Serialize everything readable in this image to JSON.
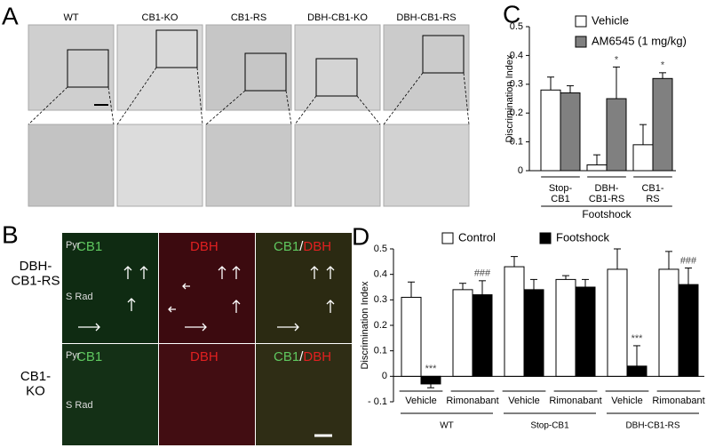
{
  "panel_a": {
    "label": "A",
    "columns": [
      "WT",
      "CB1-KO",
      "CB1-RS",
      "DBH-CB1-KO",
      "DBH-CB1-RS"
    ]
  },
  "panel_b": {
    "label": "B",
    "channels": [
      "CB1",
      "DBH"
    ],
    "separator": "/",
    "rows": [
      "DBH-\nCB1-RS",
      "CB1-\nKO"
    ],
    "regions": [
      "Pyr",
      "S Rad"
    ]
  },
  "chart_data": [
    {
      "type": "bar",
      "panel_label": "C",
      "y_label": "Discrimination Index",
      "categories": [
        "Stop-\nCB1",
        "DBH-\nCB1-RS",
        "CB1-\nRS"
      ],
      "group_label": "Footshock",
      "series": [
        {
          "name": "Vehicle",
          "color": "#ffffff",
          "values": [
            0.28,
            0.02,
            0.09
          ],
          "errors": [
            0.045,
            0.035,
            0.07
          ],
          "significance": [
            null,
            null,
            null
          ]
        },
        {
          "name": "AM6545 (1 mg/kg)",
          "color": "#808080",
          "values": [
            0.27,
            0.25,
            0.32
          ],
          "errors": [
            0.025,
            0.11,
            0.02
          ],
          "significance": [
            null,
            "*",
            "*"
          ]
        }
      ],
      "ylim": [
        0,
        0.5
      ],
      "yticks": [
        0,
        0.1,
        0.2,
        0.3,
        0.4,
        0.5
      ],
      "grid": false
    },
    {
      "type": "bar",
      "panel_label": "D",
      "y_label": "Discrimination Index",
      "categories": [
        "Vehicle",
        "Rimonabant",
        "Vehicle",
        "Rimonabant",
        "Vehicle",
        "Rimonabant"
      ],
      "groups": [
        "WT",
        "Stop-CB1",
        "DBH-CB1-RS"
      ],
      "series": [
        {
          "name": "Control",
          "color": "#ffffff",
          "values": [
            0.31,
            0.34,
            0.43,
            0.38,
            0.42,
            0.42
          ],
          "errors": [
            0.06,
            0.025,
            0.04,
            0.015,
            0.08,
            0.07
          ],
          "significance": [
            null,
            null,
            null,
            null,
            null,
            null
          ]
        },
        {
          "name": "Footshock",
          "color": "#000000",
          "values": [
            -0.03,
            0.32,
            0.34,
            0.35,
            0.04,
            0.36
          ],
          "errors": [
            0.015,
            0.055,
            0.04,
            0.03,
            0.08,
            0.065
          ],
          "significance": [
            "***",
            "###",
            null,
            null,
            "***",
            "###"
          ]
        }
      ],
      "ylim": [
        -0.1,
        0.5
      ],
      "yticks": [
        {
          "value": -0.1,
          "label": "- 0.1"
        },
        0,
        0.1,
        0.2,
        0.3,
        0.4,
        0.5
      ],
      "grid": false
    }
  ]
}
